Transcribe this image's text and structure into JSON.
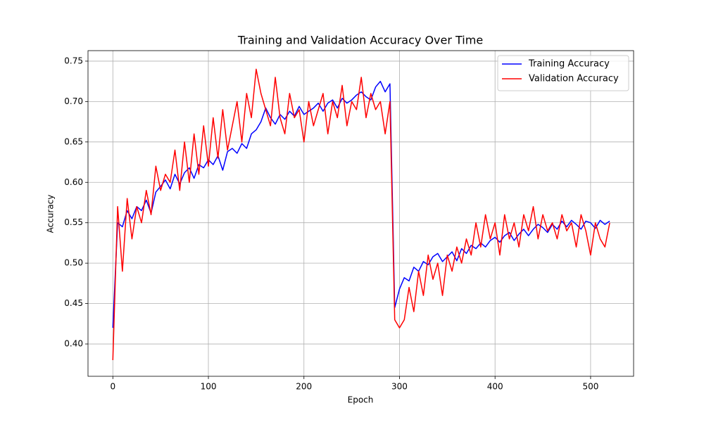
{
  "chart_data": {
    "type": "line",
    "title": "Training and Validation Accuracy Over Time",
    "x_label": "Epoch",
    "y_label": "Accuracy",
    "grid": true,
    "legend": "upper right",
    "xlim": [
      -26,
      545
    ],
    "ylim": [
      0.36,
      0.763
    ],
    "xticks": [
      0,
      100,
      200,
      300,
      400,
      500
    ],
    "yticks": [
      {
        "value": 0.4,
        "label": "0.40"
      },
      0.45,
      {
        "value": 0.5,
        "label": "0.50"
      },
      0.55,
      {
        "value": 0.6,
        "label": "0.60"
      },
      0.65,
      {
        "value": 0.7,
        "label": "0.70"
      },
      0.75
    ],
    "x": [
      0,
      5,
      10,
      15,
      20,
      25,
      30,
      35,
      40,
      45,
      50,
      55,
      60,
      65,
      70,
      75,
      80,
      85,
      90,
      95,
      100,
      105,
      110,
      115,
      120,
      125,
      130,
      135,
      140,
      145,
      150,
      155,
      160,
      165,
      170,
      175,
      180,
      185,
      190,
      195,
      200,
      205,
      210,
      215,
      220,
      225,
      230,
      235,
      240,
      245,
      250,
      255,
      260,
      265,
      270,
      275,
      280,
      285,
      290,
      295,
      300,
      305,
      310,
      315,
      320,
      325,
      330,
      335,
      340,
      345,
      350,
      355,
      360,
      365,
      370,
      375,
      380,
      385,
      390,
      395,
      400,
      405,
      410,
      415,
      420,
      425,
      430,
      435,
      440,
      445,
      450,
      455,
      460,
      465,
      470,
      475,
      480,
      485,
      490,
      495,
      500,
      505,
      510,
      515,
      520
    ],
    "series": [
      {
        "name": "Training Accuracy",
        "color": "#0000ff",
        "values": [
          0.42,
          0.55,
          0.545,
          0.565,
          0.555,
          0.57,
          0.565,
          0.578,
          0.562,
          0.588,
          0.595,
          0.603,
          0.592,
          0.61,
          0.598,
          0.612,
          0.618,
          0.605,
          0.622,
          0.618,
          0.628,
          0.622,
          0.633,
          0.615,
          0.638,
          0.642,
          0.636,
          0.648,
          0.642,
          0.66,
          0.665,
          0.675,
          0.692,
          0.68,
          0.672,
          0.684,
          0.678,
          0.688,
          0.682,
          0.694,
          0.684,
          0.688,
          0.692,
          0.698,
          0.688,
          0.698,
          0.702,
          0.692,
          0.704,
          0.698,
          0.702,
          0.708,
          0.712,
          0.706,
          0.702,
          0.718,
          0.725,
          0.712,
          0.722,
          0.445,
          0.468,
          0.482,
          0.478,
          0.495,
          0.49,
          0.502,
          0.498,
          0.508,
          0.512,
          0.502,
          0.508,
          0.514,
          0.503,
          0.518,
          0.512,
          0.522,
          0.518,
          0.525,
          0.52,
          0.528,
          0.532,
          0.526,
          0.534,
          0.538,
          0.528,
          0.536,
          0.542,
          0.534,
          0.542,
          0.548,
          0.544,
          0.538,
          0.548,
          0.542,
          0.552,
          0.545,
          0.553,
          0.548,
          0.542,
          0.552,
          0.55,
          0.543,
          0.553,
          0.548,
          0.552
        ]
      },
      {
        "name": "Validation Accuracy",
        "color": "#ff0000",
        "values": [
          0.38,
          0.57,
          0.49,
          0.58,
          0.53,
          0.57,
          0.55,
          0.59,
          0.56,
          0.62,
          0.59,
          0.61,
          0.6,
          0.64,
          0.59,
          0.65,
          0.6,
          0.66,
          0.61,
          0.67,
          0.62,
          0.68,
          0.63,
          0.69,
          0.64,
          0.67,
          0.7,
          0.65,
          0.71,
          0.68,
          0.74,
          0.71,
          0.69,
          0.67,
          0.73,
          0.68,
          0.66,
          0.71,
          0.68,
          0.69,
          0.65,
          0.7,
          0.67,
          0.69,
          0.71,
          0.66,
          0.7,
          0.68,
          0.72,
          0.67,
          0.7,
          0.69,
          0.73,
          0.68,
          0.71,
          0.69,
          0.7,
          0.66,
          0.7,
          0.43,
          0.42,
          0.43,
          0.47,
          0.44,
          0.49,
          0.46,
          0.51,
          0.48,
          0.5,
          0.46,
          0.51,
          0.49,
          0.52,
          0.5,
          0.53,
          0.51,
          0.55,
          0.52,
          0.56,
          0.53,
          0.55,
          0.51,
          0.56,
          0.53,
          0.55,
          0.52,
          0.56,
          0.54,
          0.57,
          0.53,
          0.56,
          0.54,
          0.55,
          0.53,
          0.56,
          0.54,
          0.55,
          0.52,
          0.56,
          0.54,
          0.51,
          0.55,
          0.53,
          0.52,
          0.55
        ]
      }
    ]
  }
}
